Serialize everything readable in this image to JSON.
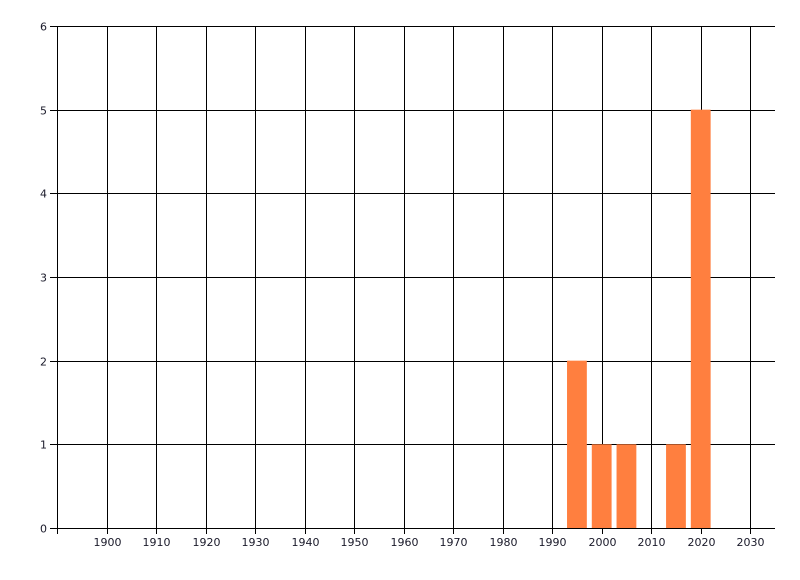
{
  "chart_data": {
    "type": "bar",
    "title": "",
    "xlabel": "",
    "ylabel": "",
    "x": [
      1995,
      2000,
      2005,
      2015,
      2020
    ],
    "values": [
      2,
      1,
      1,
      1,
      5
    ],
    "bar_width_years": 4,
    "xlim": [
      1890,
      2035
    ],
    "ylim": [
      0,
      6
    ],
    "x_ticks": [
      1900,
      1910,
      1920,
      1930,
      1940,
      1950,
      1960,
      1970,
      1980,
      1990,
      2000,
      2010,
      2020,
      2030
    ],
    "y_ticks": [
      0,
      1,
      2,
      3,
      4,
      5,
      6
    ],
    "grid": true,
    "legend": "none",
    "colors": {
      "bar": "#ff7f3f",
      "grid": "#000000"
    }
  }
}
